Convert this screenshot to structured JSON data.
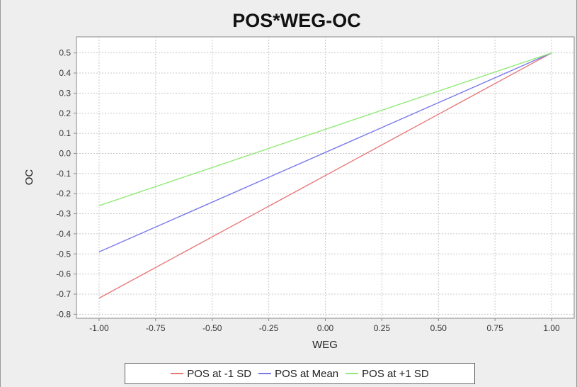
{
  "chart_data": {
    "type": "line",
    "title": "POS*WEG-OC",
    "xlabel": "WEG",
    "ylabel": "OC",
    "xlim": [
      -1.1,
      1.1
    ],
    "ylim": [
      -0.82,
      0.58
    ],
    "xticks": [
      -1.0,
      -0.75,
      -0.5,
      -0.25,
      0.0,
      0.25,
      0.5,
      0.75,
      1.0
    ],
    "xtick_labels": [
      "-1.00",
      "-0.75",
      "-0.50",
      "-0.25",
      "0.00",
      "0.25",
      "0.50",
      "0.75",
      "1.00"
    ],
    "yticks": [
      0.5,
      0.4,
      0.3,
      0.2,
      0.1,
      0.0,
      -0.1,
      -0.2,
      -0.3,
      -0.4,
      -0.5,
      -0.6,
      -0.7,
      -0.8
    ],
    "ytick_labels": [
      "0.5",
      "0.4",
      "0.3",
      "0.2",
      "0.1",
      "0.0",
      "-0.1",
      "-0.2",
      "-0.3",
      "-0.4",
      "-0.5",
      "-0.6",
      "-0.7",
      "-0.8"
    ],
    "grid": true,
    "legend_position": "bottom",
    "series": [
      {
        "name": "POS at -1 SD",
        "color": "#e87a7a",
        "x": [
          -1.0,
          1.0
        ],
        "y": [
          -0.72,
          0.5
        ]
      },
      {
        "name": "POS at Mean",
        "color": "#7a7aea",
        "x": [
          -1.0,
          1.0
        ],
        "y": [
          -0.49,
          0.5
        ]
      },
      {
        "name": "POS at +1 SD",
        "color": "#93ea7a",
        "x": [
          -1.0,
          1.0
        ],
        "y": [
          -0.26,
          0.5
        ]
      }
    ]
  }
}
